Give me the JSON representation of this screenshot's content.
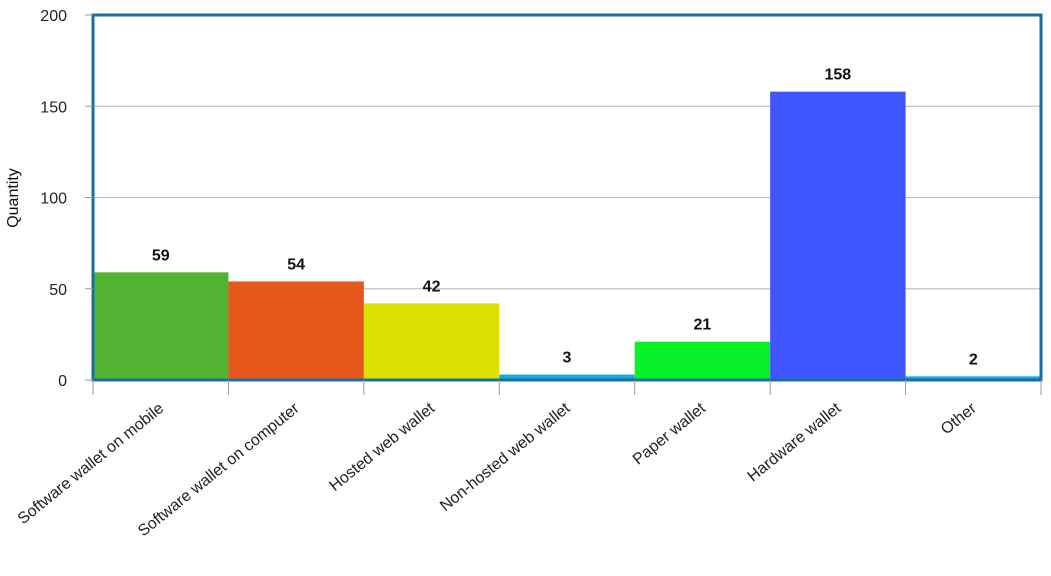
{
  "chart_data": {
    "type": "bar",
    "title": "",
    "xlabel": "",
    "ylabel": "Quantity",
    "ylim": [
      0,
      200
    ],
    "yticks": [
      0,
      50,
      100,
      150,
      200
    ],
    "grid": true,
    "categories": [
      "Software wallet on mobile",
      "Software wallet on computer",
      "Hosted web wallet",
      "Non-hosted web wallet",
      "Paper wallet",
      "Hardware wallet",
      "Other"
    ],
    "values": [
      59,
      54,
      42,
      3,
      21,
      158,
      2
    ],
    "value_labels": [
      "59",
      "54",
      "42",
      "3",
      "21",
      "158",
      "2"
    ],
    "colors": [
      "#52b432",
      "#e5571a",
      "#dde000",
      "#16a9e0",
      "#08f22a",
      "#3e55ff",
      "#16a9e0"
    ],
    "frame_color": "#1a6fa0",
    "grid_color": "#c2c2c2"
  }
}
